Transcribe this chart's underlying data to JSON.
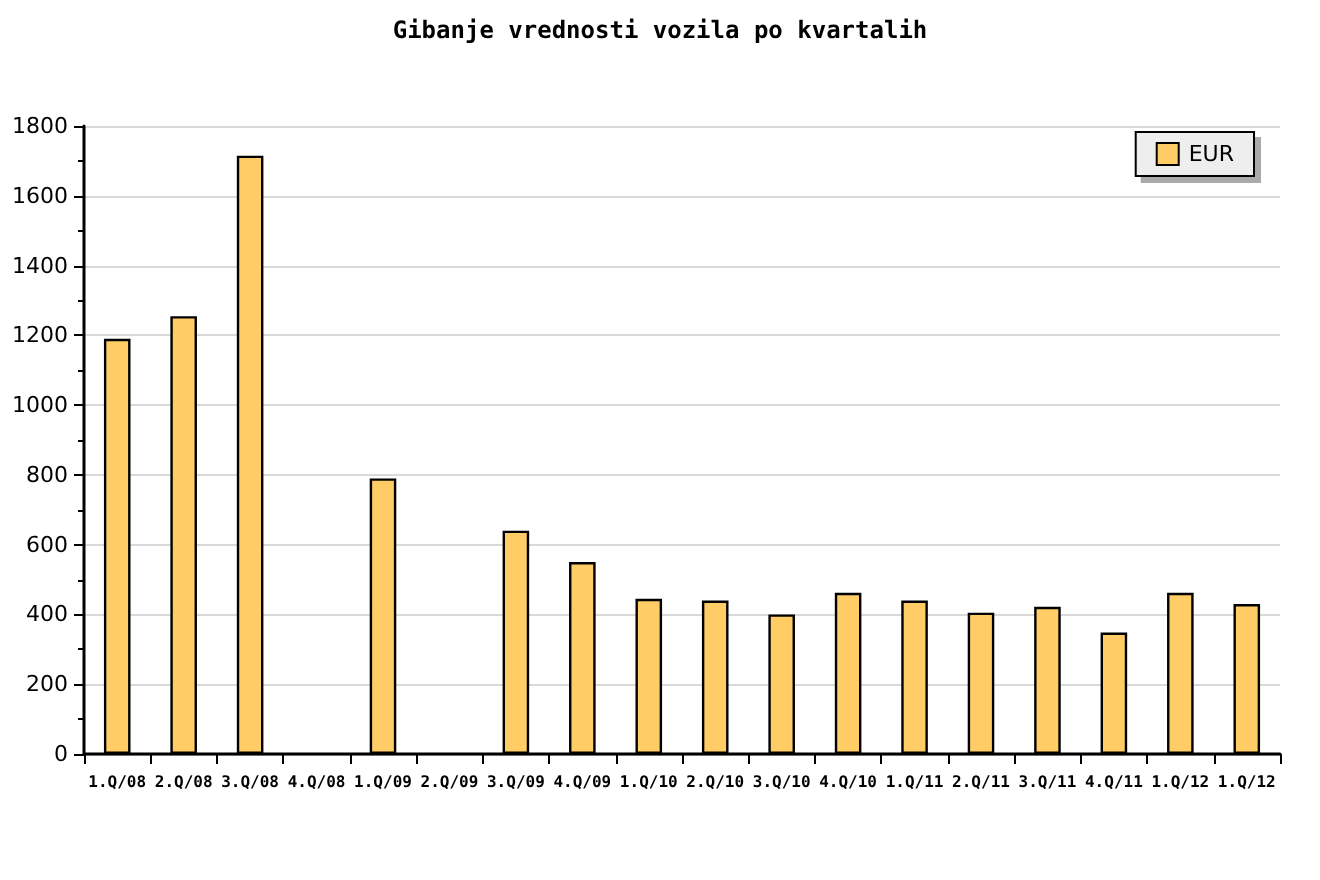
{
  "chart_data": {
    "type": "bar",
    "title": "Gibanje vrednosti vozila po kvartalih",
    "categories": [
      "1.Q/08",
      "2.Q/08",
      "3.Q/08",
      "4.Q/08",
      "1.Q/09",
      "2.Q/09",
      "3.Q/09",
      "4.Q/09",
      "1.Q/10",
      "2.Q/10",
      "3.Q/10",
      "4.Q/10",
      "1.Q/11",
      "2.Q/11",
      "3.Q/11",
      "4.Q/11",
      "1.Q/12",
      "1.Q/12"
    ],
    "series": [
      {
        "name": "EUR",
        "color": "#ffcc66",
        "values": [
          1190,
          1255,
          1715,
          null,
          790,
          null,
          640,
          550,
          445,
          440,
          400,
          462,
          440,
          405,
          422,
          348,
          462,
          430
        ]
      }
    ],
    "ylim": [
      0,
      1800
    ],
    "yticks": [
      0,
      {
        "value": 100,
        "label": null
      },
      200,
      {
        "value": 300,
        "label": null
      },
      400,
      {
        "value": 500,
        "label": null
      },
      600,
      {
        "value": 700,
        "label": null
      },
      800,
      {
        "value": 900,
        "label": null
      },
      1000,
      {
        "value": 1100,
        "label": null
      },
      1200,
      {
        "value": 1300,
        "label": null
      },
      1400,
      {
        "value": 1500,
        "label": null
      },
      1600,
      {
        "value": 1700,
        "label": null
      },
      1800
    ],
    "grid": "y",
    "legend": "top right"
  }
}
